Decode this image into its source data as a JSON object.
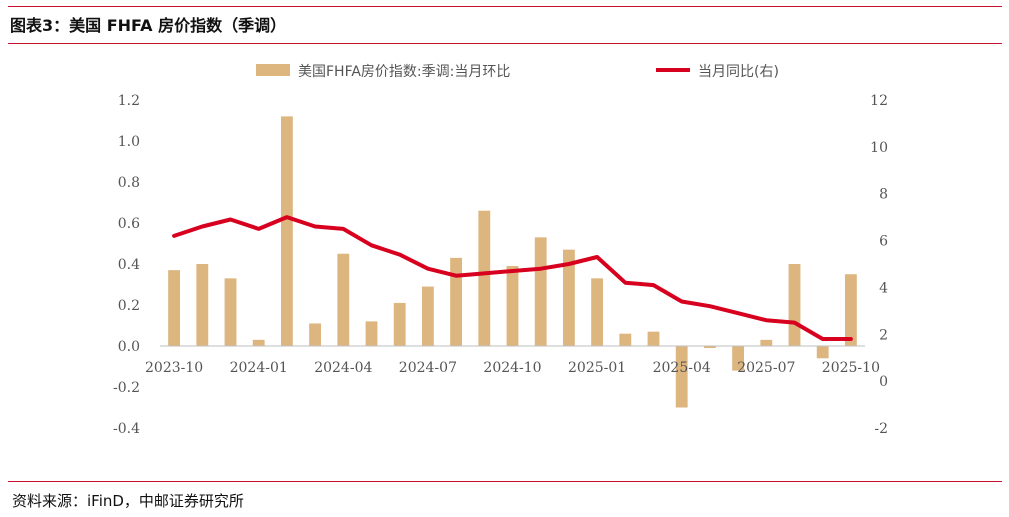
{
  "header": {
    "title": "图表3：美国 FHFA 房价指数（季调）"
  },
  "footer": {
    "source": "资料来源：iFinD，中邮证券研究所"
  },
  "chart_data": {
    "type": "bar+line",
    "title": "",
    "legend_placement": "top",
    "grid": false,
    "colors": {
      "bar": "#ddb57f",
      "line": "#d7001e",
      "rule": "#c8102e"
    },
    "categories": [
      "2023-10",
      "2023-11",
      "2023-12",
      "2024-01",
      "2024-02",
      "2024-03",
      "2024-04",
      "2024-05",
      "2024-06",
      "2024-07",
      "2024-08",
      "2024-09",
      "2024-10",
      "2024-11",
      "2024-12",
      "2025-01",
      "2025-02",
      "2025-03",
      "2025-04",
      "2025-05",
      "2025-06",
      "2025-07",
      "2025-08",
      "2025-09",
      "2025-10"
    ],
    "x_tick_labels": [
      "2023-10",
      "2024-01",
      "2024-04",
      "2024-07",
      "2024-10",
      "2025-01",
      "2025-04",
      "2025-07",
      "2025-10"
    ],
    "x_tick_every": 3,
    "y_left": {
      "min": -0.4,
      "max": 1.2,
      "ticks": [
        "-0.4",
        "-0.2",
        "0.0",
        "0.2",
        "0.4",
        "0.6",
        "0.8",
        "1.0",
        "1.2"
      ]
    },
    "y_right": {
      "min": -2,
      "max": 12,
      "ticks": [
        "-2",
        "0",
        "2",
        "4",
        "6",
        "8",
        "10",
        "12"
      ]
    },
    "series": [
      {
        "name": "美国FHFA房价指数:季调:当月环比",
        "type": "bar",
        "axis": "left",
        "values": [
          0.37,
          0.4,
          0.33,
          0.03,
          1.12,
          0.11,
          0.45,
          0.12,
          0.21,
          0.29,
          0.43,
          0.66,
          0.39,
          0.53,
          0.47,
          0.33,
          0.06,
          0.07,
          -0.3,
          -0.01,
          -0.12,
          0.03,
          0.4,
          -0.06,
          0.35
        ]
      },
      {
        "name": "当月同比(右)",
        "type": "line",
        "axis": "right",
        "values": [
          6.2,
          6.6,
          6.9,
          6.5,
          7.0,
          6.6,
          6.5,
          5.8,
          5.4,
          4.8,
          4.5,
          4.6,
          4.7,
          4.8,
          5.0,
          5.3,
          4.2,
          4.1,
          3.4,
          3.2,
          2.9,
          2.6,
          2.5,
          1.8,
          1.8
        ]
      }
    ]
  }
}
